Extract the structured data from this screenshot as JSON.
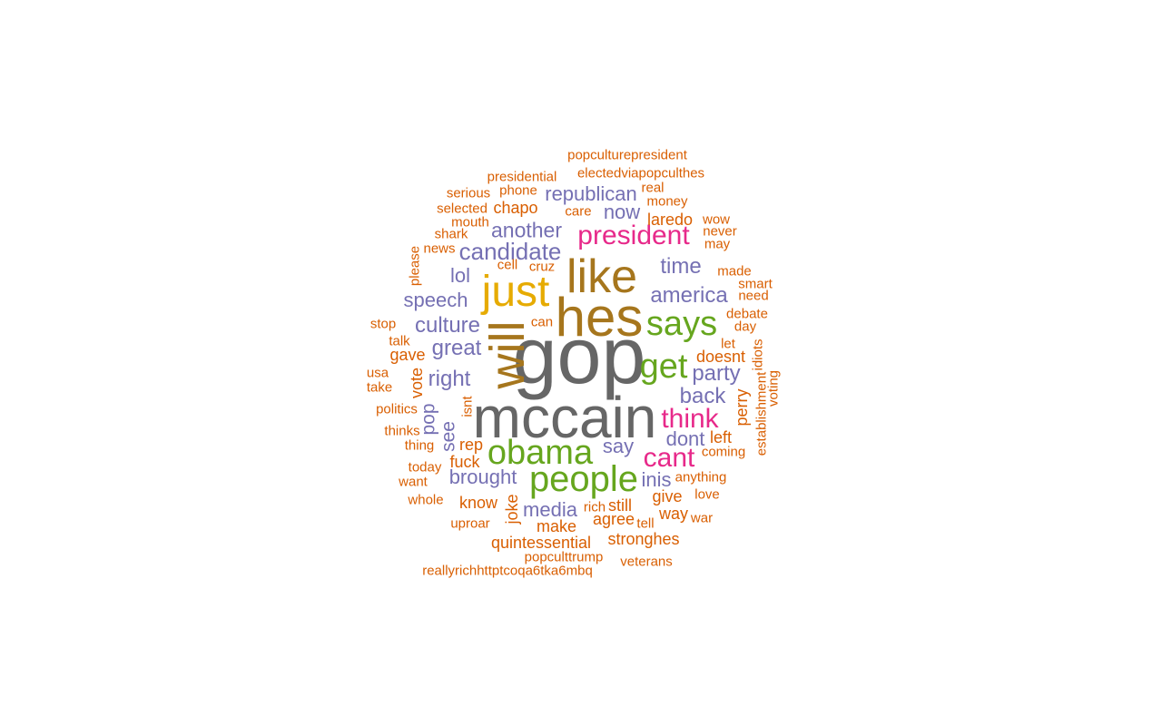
{
  "palette": {
    "orange": "#D95F02",
    "purple": "#7570B3",
    "magenta": "#E7298A",
    "green": "#66A61E",
    "gold": "#E6AB02",
    "brown": "#A6761D",
    "gray": "#666666"
  },
  "words": [
    {
      "text": "gop",
      "color": "gray"
    },
    {
      "text": "mccain",
      "color": "gray"
    },
    {
      "text": "hes",
      "color": "brown"
    },
    {
      "text": "like",
      "color": "brown"
    },
    {
      "text": "will",
      "color": "brown"
    },
    {
      "text": "just",
      "color": "gold"
    },
    {
      "text": "people",
      "color": "green"
    },
    {
      "text": "obama",
      "color": "green"
    },
    {
      "text": "says",
      "color": "green"
    },
    {
      "text": "get",
      "color": "green"
    },
    {
      "text": "president",
      "color": "magenta"
    },
    {
      "text": "think",
      "color": "magenta"
    },
    {
      "text": "cant",
      "color": "magenta"
    },
    {
      "text": "candidate",
      "color": "purple"
    },
    {
      "text": "republican",
      "color": "purple"
    },
    {
      "text": "another",
      "color": "purple"
    },
    {
      "text": "america",
      "color": "purple"
    },
    {
      "text": "time",
      "color": "purple"
    },
    {
      "text": "party",
      "color": "purple"
    },
    {
      "text": "back",
      "color": "purple"
    },
    {
      "text": "culture",
      "color": "purple"
    },
    {
      "text": "great",
      "color": "purple"
    },
    {
      "text": "right",
      "color": "purple"
    },
    {
      "text": "speech",
      "color": "purple"
    },
    {
      "text": "lol",
      "color": "purple"
    },
    {
      "text": "now",
      "color": "purple"
    },
    {
      "text": "say",
      "color": "purple"
    },
    {
      "text": "dont",
      "color": "purple"
    },
    {
      "text": "inis",
      "color": "purple"
    },
    {
      "text": "media",
      "color": "purple"
    },
    {
      "text": "brought",
      "color": "purple"
    },
    {
      "text": "see",
      "color": "purple"
    },
    {
      "text": "pop",
      "color": "purple"
    },
    {
      "text": "popculturepresident",
      "color": "orange"
    },
    {
      "text": "electedviapopculthes",
      "color": "orange"
    },
    {
      "text": "presidential",
      "color": "orange"
    },
    {
      "text": "serious",
      "color": "orange"
    },
    {
      "text": "phone",
      "color": "orange"
    },
    {
      "text": "real",
      "color": "orange"
    },
    {
      "text": "money",
      "color": "orange"
    },
    {
      "text": "selected",
      "color": "orange"
    },
    {
      "text": "chapo",
      "color": "orange"
    },
    {
      "text": "care",
      "color": "orange"
    },
    {
      "text": "laredo",
      "color": "orange"
    },
    {
      "text": "wow",
      "color": "orange"
    },
    {
      "text": "mouth",
      "color": "orange"
    },
    {
      "text": "never",
      "color": "orange"
    },
    {
      "text": "shark",
      "color": "orange"
    },
    {
      "text": "may",
      "color": "orange"
    },
    {
      "text": "news",
      "color": "orange"
    },
    {
      "text": "please",
      "color": "orange"
    },
    {
      "text": "cell",
      "color": "orange"
    },
    {
      "text": "cruz",
      "color": "orange"
    },
    {
      "text": "made",
      "color": "orange"
    },
    {
      "text": "smart",
      "color": "orange"
    },
    {
      "text": "need",
      "color": "orange"
    },
    {
      "text": "debate",
      "color": "orange"
    },
    {
      "text": "stop",
      "color": "orange"
    },
    {
      "text": "can",
      "color": "orange"
    },
    {
      "text": "day",
      "color": "orange"
    },
    {
      "text": "talk",
      "color": "orange"
    },
    {
      "text": "let",
      "color": "orange"
    },
    {
      "text": "gave",
      "color": "orange"
    },
    {
      "text": "idiots",
      "color": "orange"
    },
    {
      "text": "doesnt",
      "color": "orange"
    },
    {
      "text": "usa",
      "color": "orange"
    },
    {
      "text": "take",
      "color": "orange"
    },
    {
      "text": "vote",
      "color": "orange"
    },
    {
      "text": "establishment",
      "color": "orange"
    },
    {
      "text": "voting",
      "color": "orange"
    },
    {
      "text": "politics",
      "color": "orange"
    },
    {
      "text": "isnt",
      "color": "orange"
    },
    {
      "text": "perry",
      "color": "orange"
    },
    {
      "text": "thinks",
      "color": "orange"
    },
    {
      "text": "left",
      "color": "orange"
    },
    {
      "text": "thing",
      "color": "orange"
    },
    {
      "text": "rep",
      "color": "orange"
    },
    {
      "text": "coming",
      "color": "orange"
    },
    {
      "text": "fuck",
      "color": "orange"
    },
    {
      "text": "today",
      "color": "orange"
    },
    {
      "text": "anything",
      "color": "orange"
    },
    {
      "text": "want",
      "color": "orange"
    },
    {
      "text": "give",
      "color": "orange"
    },
    {
      "text": "love",
      "color": "orange"
    },
    {
      "text": "whole",
      "color": "orange"
    },
    {
      "text": "know",
      "color": "orange"
    },
    {
      "text": "joke",
      "color": "orange"
    },
    {
      "text": "rich",
      "color": "orange"
    },
    {
      "text": "still",
      "color": "orange"
    },
    {
      "text": "way",
      "color": "orange"
    },
    {
      "text": "war",
      "color": "orange"
    },
    {
      "text": "uproar",
      "color": "orange"
    },
    {
      "text": "make",
      "color": "orange"
    },
    {
      "text": "agree",
      "color": "orange"
    },
    {
      "text": "tell",
      "color": "orange"
    },
    {
      "text": "quintessential",
      "color": "orange"
    },
    {
      "text": "stronghes",
      "color": "orange"
    },
    {
      "text": "popculttrump",
      "color": "orange"
    },
    {
      "text": "veterans",
      "color": "orange"
    },
    {
      "text": "reallyrichhttptcoqa6tka6mbq",
      "color": "orange"
    }
  ]
}
